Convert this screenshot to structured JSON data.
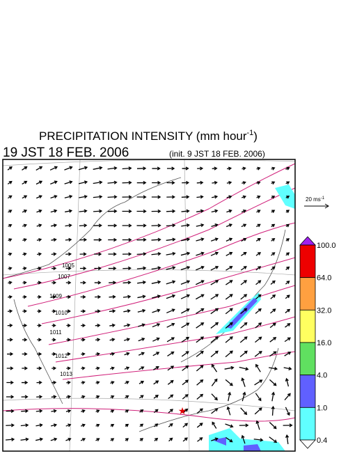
{
  "header": {
    "title": {
      "text": "PRECIPITATION INTENSITY (mm hour",
      "sup": "-1",
      "tail": ")"
    },
    "valid_time": "19 JST 18 FEB. 2006",
    "init_time": "(init. 9 JST 18 FEB. 2006)"
  },
  "reference_vector": {
    "text": "20 ms",
    "sup": "-1"
  },
  "isobar_labels": [
    "1005",
    "1007",
    "1009",
    "1010",
    "1011",
    "1012",
    "1013"
  ],
  "colorbar": {
    "labels": [
      "100.0",
      "64.0",
      "32.0",
      "16.0",
      "4.0",
      "1.0",
      "0.4"
    ],
    "colors": [
      "#a020f0",
      "#ee0000",
      "#ffa040",
      "#ffff60",
      "#60e060",
      "#6060ff",
      "#60ffff",
      "#ffffff"
    ]
  }
}
